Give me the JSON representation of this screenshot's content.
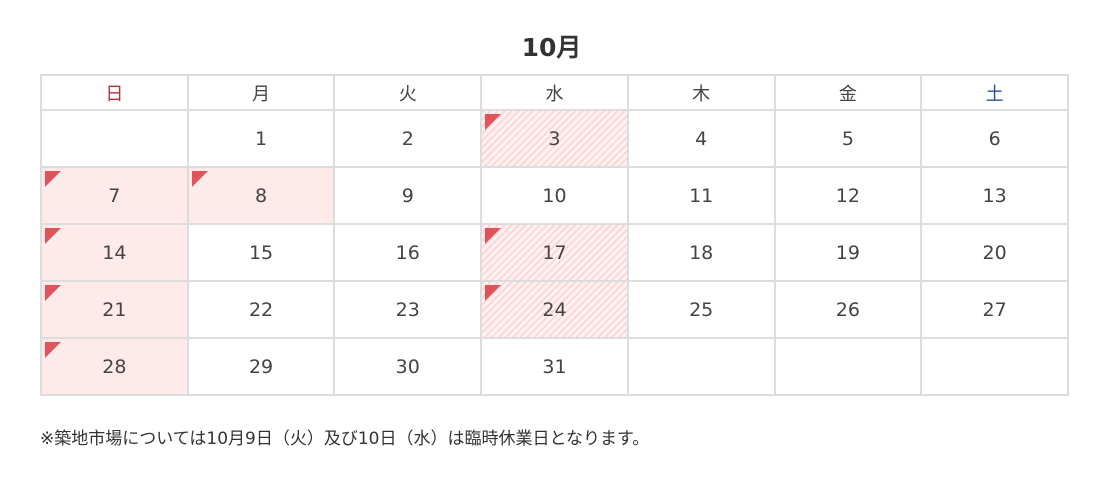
{
  "title": "10月",
  "weekdays": [
    "日",
    "月",
    "火",
    "水",
    "木",
    "金",
    "土"
  ],
  "colors": {
    "closed_bg": "#ffeaea",
    "marker": "#e0535a",
    "sunday": "#b5303a",
    "saturday": "#2a4ea0"
  },
  "weeks": [
    [
      null,
      {
        "d": "1"
      },
      {
        "d": "2"
      },
      {
        "d": "3",
        "s": "hatch"
      },
      {
        "d": "4"
      },
      {
        "d": "5"
      },
      {
        "d": "6"
      }
    ],
    [
      {
        "d": "7",
        "s": "closed"
      },
      {
        "d": "8",
        "s": "closed"
      },
      {
        "d": "9"
      },
      {
        "d": "10"
      },
      {
        "d": "11"
      },
      {
        "d": "12"
      },
      {
        "d": "13"
      }
    ],
    [
      {
        "d": "14",
        "s": "closed"
      },
      {
        "d": "15"
      },
      {
        "d": "16"
      },
      {
        "d": "17",
        "s": "hatch"
      },
      {
        "d": "18"
      },
      {
        "d": "19"
      },
      {
        "d": "20"
      }
    ],
    [
      {
        "d": "21",
        "s": "closed"
      },
      {
        "d": "22"
      },
      {
        "d": "23"
      },
      {
        "d": "24",
        "s": "hatch"
      },
      {
        "d": "25"
      },
      {
        "d": "26"
      },
      {
        "d": "27"
      }
    ],
    [
      {
        "d": "28",
        "s": "closed"
      },
      {
        "d": "29"
      },
      {
        "d": "30"
      },
      {
        "d": "31"
      },
      null,
      null,
      null
    ]
  ],
  "note": "※築地市場については10月9日（火）及び10日（水）は臨時休業日となります。"
}
